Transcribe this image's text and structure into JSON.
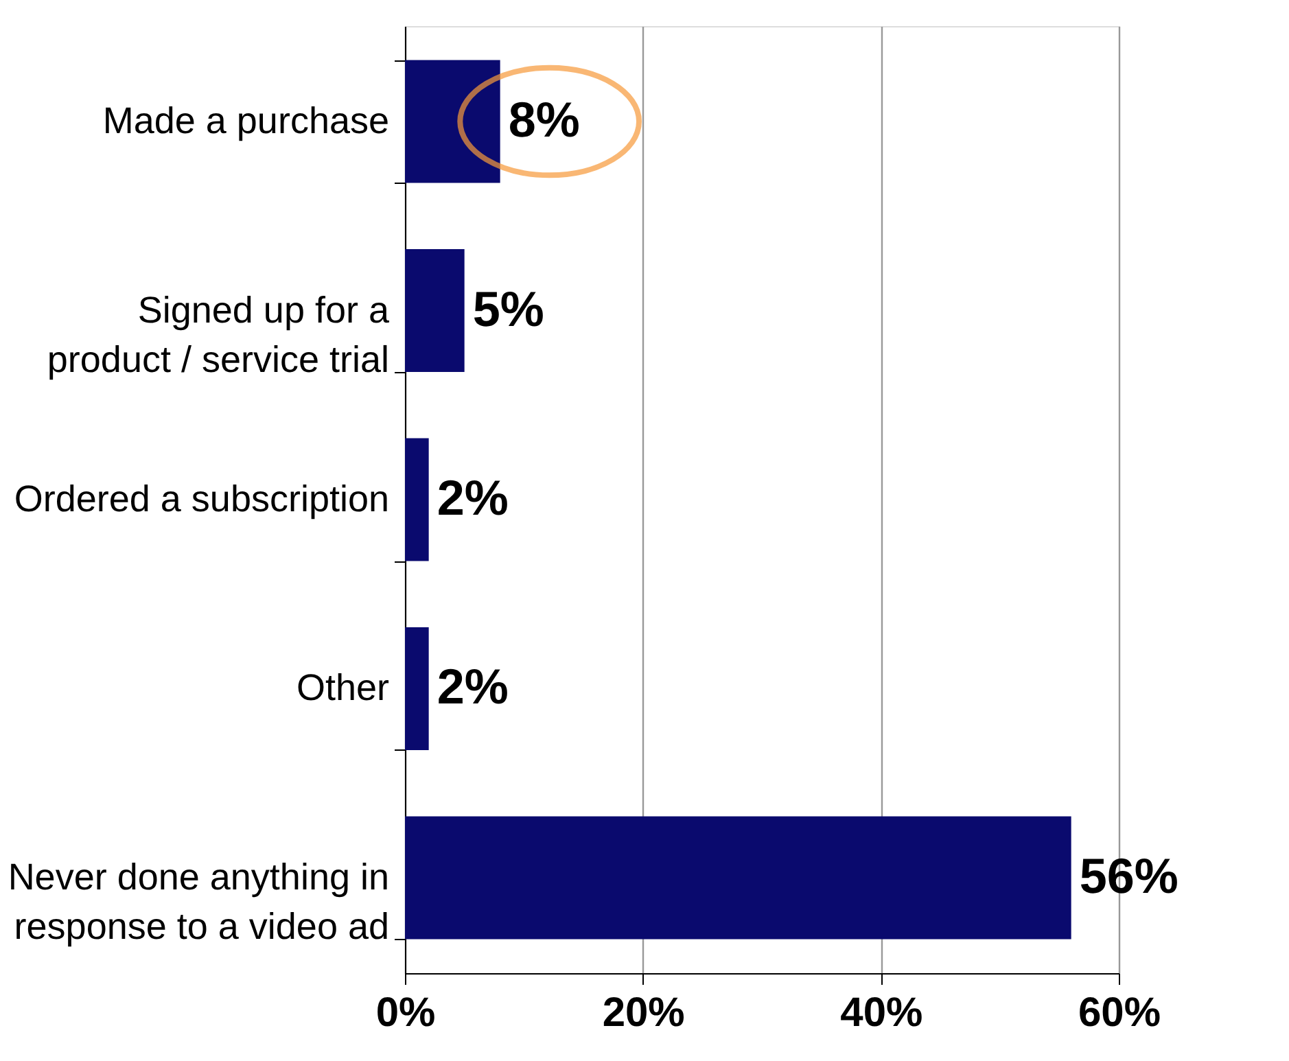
{
  "chart_data": {
    "type": "bar",
    "orientation": "horizontal",
    "categories": [
      "Made a purchase",
      "Signed up for a\nproduct / service trial",
      "Ordered a subscription",
      "Other",
      "Never done anything in\nresponse to a video ad"
    ],
    "values": [
      8,
      5,
      2,
      2,
      56
    ],
    "value_labels": [
      "8%",
      "5%",
      "2%",
      "2%",
      "56%"
    ],
    "color": "#0a0a6e",
    "xlim": [
      0,
      60
    ],
    "xticks": [
      {
        "value": 0,
        "label": "0%"
      },
      {
        "value": 20,
        "label": "20%"
      },
      {
        "value": 40,
        "label": "40%"
      },
      {
        "value": 60,
        "label": "60%"
      }
    ],
    "grid": "x"
  }
}
